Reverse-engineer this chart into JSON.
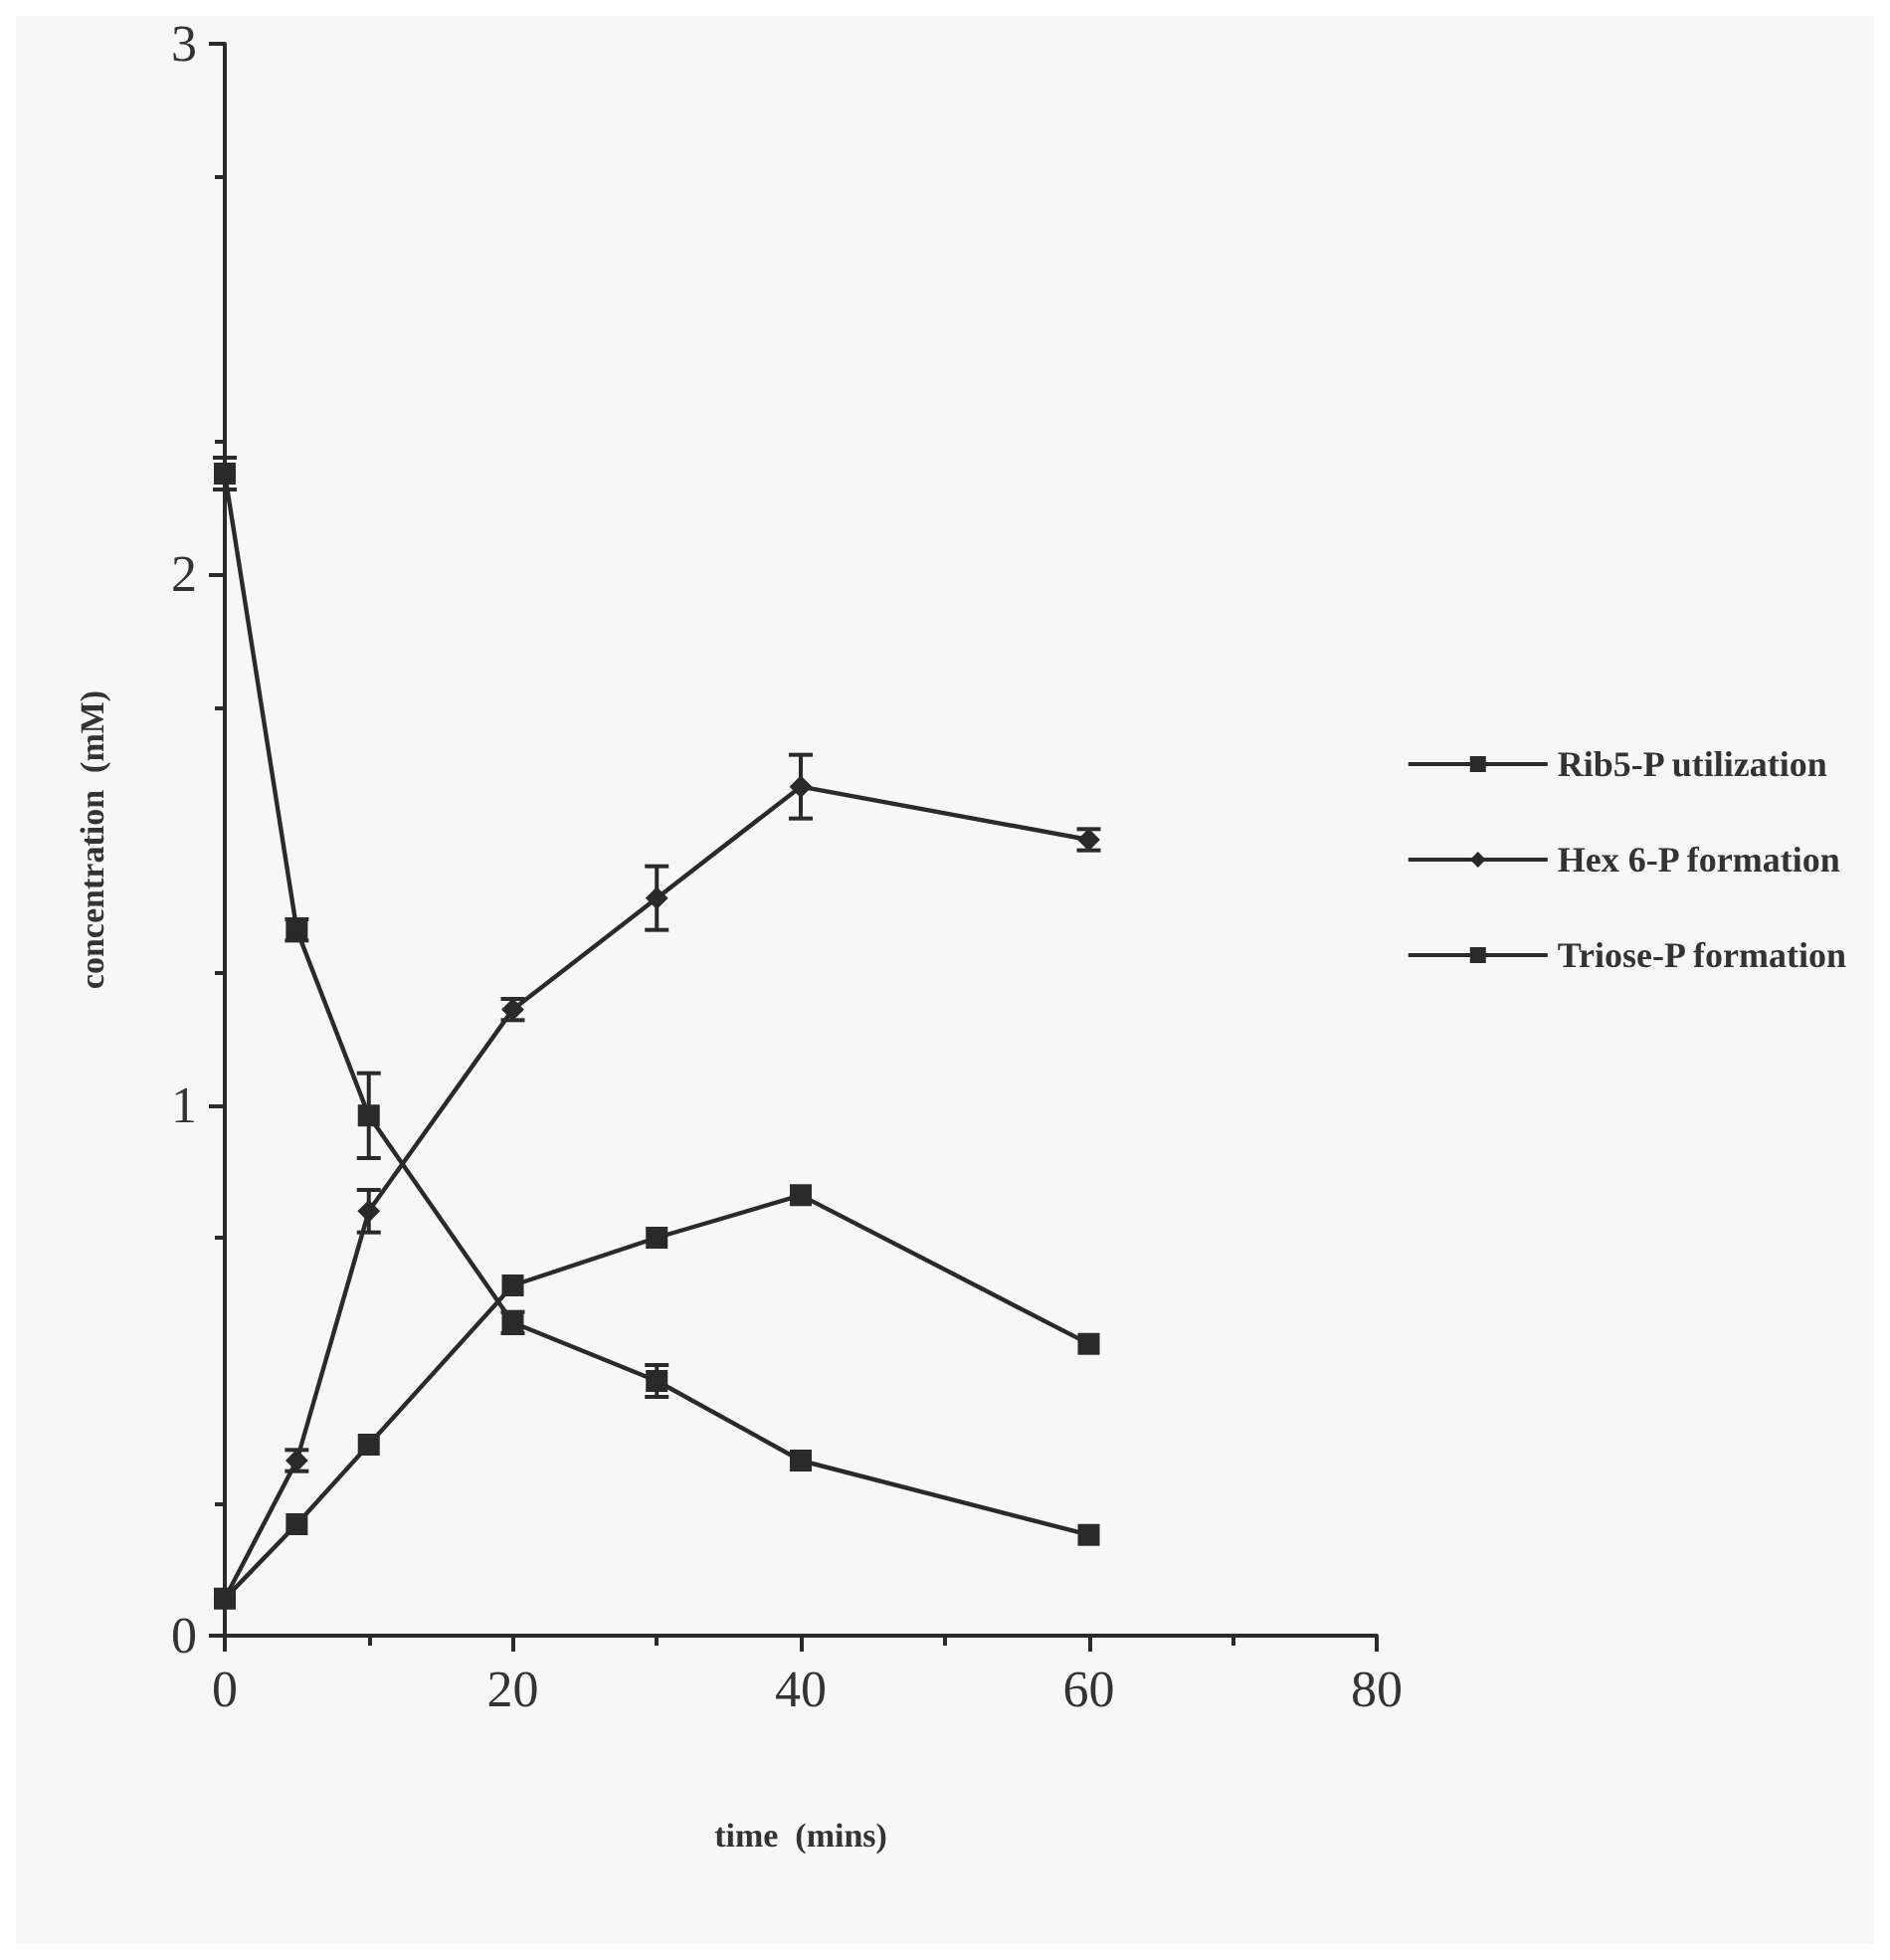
{
  "chart_data": {
    "type": "line",
    "xlabel": "time  (mins)",
    "ylabel": "concentration  (mM)",
    "x": [
      0,
      5,
      10,
      20,
      30,
      40,
      60
    ],
    "series": [
      {
        "name": "Rib5-P utilization",
        "color": "#2a2a2a",
        "marker": "square",
        "values": [
          2.19,
          1.33,
          0.98,
          0.59,
          0.48,
          0.33,
          0.19
        ],
        "errors": [
          0.03,
          0.02,
          0.08,
          0.02,
          0.03,
          null,
          null
        ]
      },
      {
        "name": "Hex 6-P formation",
        "color": "#2a2a2a",
        "marker": "diamond",
        "values": [
          0.07,
          0.33,
          0.8,
          1.18,
          1.39,
          1.6,
          1.5
        ],
        "errors": [
          null,
          0.02,
          0.04,
          0.02,
          0.06,
          0.06,
          0.02
        ]
      },
      {
        "name": "Triose-P formation",
        "color": "#2a2a2a",
        "marker": "square",
        "values": [
          0.07,
          0.21,
          0.36,
          0.66,
          0.75,
          0.83,
          0.55
        ],
        "errors": [
          null,
          null,
          null,
          null,
          null,
          null,
          null
        ]
      }
    ],
    "xlim": [
      0,
      80
    ],
    "xticks": [
      0,
      20,
      40,
      60,
      80
    ],
    "ylim": [
      0,
      3
    ],
    "yticks": [
      0,
      1,
      2,
      3
    ],
    "legend": "right",
    "grid": false,
    "line_style": "solid"
  }
}
